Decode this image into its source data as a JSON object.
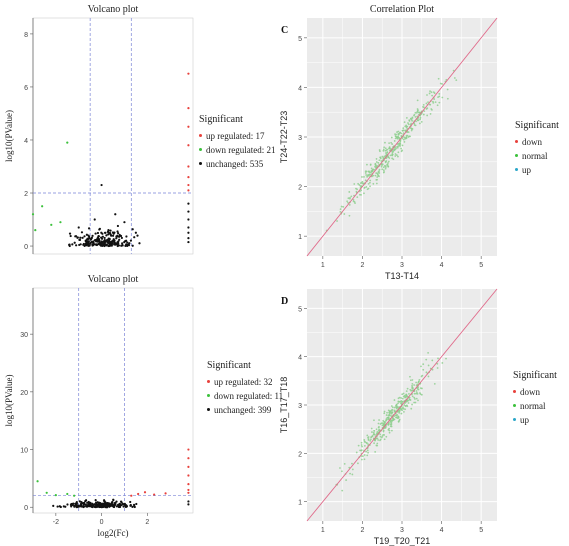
{
  "chart_data": [
    {
      "id": "volcano_top",
      "type": "scatter",
      "title": "Volcano plot",
      "xlabel": "",
      "ylabel": "log10(PValue)",
      "xlim": [
        -3,
        4
      ],
      "ylim": [
        -0.3,
        8.6
      ],
      "yticks": [
        0,
        2,
        4,
        6,
        8
      ],
      "xticks": [],
      "vlines": [
        -0.5,
        1.3
      ],
      "hline": 2,
      "legend": {
        "title": "Significant",
        "placement": "right",
        "entries": [
          {
            "label": "up regulated: 17",
            "color": "#e8413c"
          },
          {
            "label": "down regulated: 21",
            "color": "#3cc13c"
          },
          {
            "label": "unchanged: 535",
            "color": "#111111"
          }
        ]
      },
      "colors": {
        "up": "#e8413c",
        "down": "#3cc13c",
        "unchanged": "#111111"
      },
      "series": [
        {
          "key": "up",
          "points": [
            [
              3.8,
              6.5
            ],
            [
              3.8,
              5.2
            ],
            [
              3.8,
              4.5
            ],
            [
              3.8,
              3.8
            ],
            [
              3.8,
              3.0
            ],
            [
              3.8,
              2.6
            ],
            [
              3.8,
              2.3
            ],
            [
              3.8,
              2.1
            ]
          ]
        },
        {
          "key": "down",
          "points": [
            [
              -2.6,
              1.5
            ],
            [
              -3.0,
              1.2
            ],
            [
              -1.8,
              0.9
            ],
            [
              -2.2,
              0.8
            ],
            [
              -2.9,
              0.6
            ],
            [
              -1.5,
              3.9
            ]
          ]
        },
        {
          "key": "unchanged",
          "points": [
            [
              0.0,
              2.3
            ],
            [
              -0.3,
              1.0
            ],
            [
              0.6,
              1.2
            ],
            [
              1.0,
              0.9
            ],
            [
              -1.0,
              0.7
            ],
            [
              1.5,
              0.5
            ],
            [
              0.3,
              0.6
            ],
            [
              3.8,
              1.6
            ],
            [
              3.8,
              1.3
            ],
            [
              3.8,
              1.0
            ],
            [
              3.8,
              0.7
            ],
            [
              3.8,
              0.5
            ],
            [
              3.8,
              0.3
            ],
            [
              3.8,
              0.15
            ]
          ]
        }
      ],
      "unchanged_cloud": {
        "n": 230,
        "x_range": [
          -1.8,
          2.0
        ],
        "y_max": 0.9
      }
    },
    {
      "id": "volcano_bottom",
      "type": "scatter",
      "title": "Volcano plot",
      "xlabel": "log2(Fc)",
      "ylabel": "log10(PValue)",
      "xlim": [
        -3,
        4
      ],
      "ylim": [
        -1,
        38
      ],
      "yticks": [
        0,
        10,
        20,
        30
      ],
      "xticks": [
        -2,
        0,
        2
      ],
      "vlines": [
        -1,
        1
      ],
      "hline": 2,
      "legend": {
        "title": "Significant",
        "placement": "right",
        "entries": [
          {
            "label": "up regulated: 32",
            "color": "#e8413c"
          },
          {
            "label": "down regulated: 11",
            "color": "#3cc13c"
          },
          {
            "label": "unchanged: 399",
            "color": "#111111"
          }
        ]
      },
      "colors": {
        "up": "#e8413c",
        "down": "#3cc13c",
        "unchanged": "#111111"
      },
      "series": [
        {
          "key": "up",
          "points": [
            [
              3.8,
              10.0
            ],
            [
              3.8,
              8.5
            ],
            [
              3.8,
              7.0
            ],
            [
              3.8,
              5.5
            ],
            [
              3.8,
              4.0
            ],
            [
              1.6,
              2.3
            ],
            [
              1.9,
              2.6
            ],
            [
              2.3,
              2.2
            ],
            [
              2.8,
              2.4
            ],
            [
              1.3,
              2.0
            ],
            [
              3.8,
              3.0
            ],
            [
              3.8,
              2.5
            ]
          ]
        },
        {
          "key": "down",
          "points": [
            [
              -2.8,
              4.5
            ],
            [
              -2.4,
              2.5
            ],
            [
              -1.5,
              2.3
            ],
            [
              -2.0,
              2.1
            ],
            [
              -1.2,
              2.0
            ]
          ]
        },
        {
          "key": "unchanged",
          "points": [
            [
              3.8,
              1.0
            ],
            [
              3.8,
              0.5
            ]
          ]
        }
      ],
      "unchanged_cloud": {
        "n": 240,
        "x_range": [
          -2.2,
          2.0
        ],
        "y_max": 1.6
      }
    },
    {
      "id": "corr_c",
      "type": "scatter",
      "title": "Correlation Plot",
      "panel_label": "C",
      "xlabel": "T13-T14",
      "ylabel": "T24-T22-T23",
      "xlim": [
        0.6,
        5.4
      ],
      "ylim": [
        0.6,
        5.4
      ],
      "xticks": [
        1,
        2,
        3,
        4,
        5
      ],
      "yticks": [
        1,
        2,
        3,
        4,
        5
      ],
      "legend": {
        "title": "Significant",
        "placement": "right",
        "entries": [
          {
            "label": "down",
            "color": "#e8413c"
          },
          {
            "label": "normal",
            "color": "#3cc13c"
          },
          {
            "label": "up",
            "color": "#2aa6c9"
          }
        ]
      },
      "diagonal": true,
      "diag_color": "#e06a8a",
      "cloud": {
        "n": 420,
        "x_range": [
          1.0,
          4.6
        ],
        "spread": 0.3,
        "color": "#8fcf8f"
      }
    },
    {
      "id": "corr_d",
      "type": "scatter",
      "title": "",
      "panel_label": "D",
      "xlabel": "T19_T20_T21",
      "ylabel": "T16_T17_T18",
      "xlim": [
        0.6,
        5.4
      ],
      "ylim": [
        0.6,
        5.4
      ],
      "xticks": [
        1,
        2,
        3,
        4,
        5
      ],
      "yticks": [
        1,
        2,
        3,
        4,
        5
      ],
      "legend": {
        "title": "Significant",
        "placement": "right",
        "entries": [
          {
            "label": "down",
            "color": "#e8413c"
          },
          {
            "label": "normal",
            "color": "#3cc13c"
          },
          {
            "label": "up",
            "color": "#2aa6c9"
          }
        ]
      },
      "diagonal": true,
      "diag_color": "#e06a8a",
      "cloud": {
        "n": 420,
        "x_range": [
          1.2,
          4.4
        ],
        "spread": 0.3,
        "color": "#8fcf8f"
      }
    }
  ]
}
